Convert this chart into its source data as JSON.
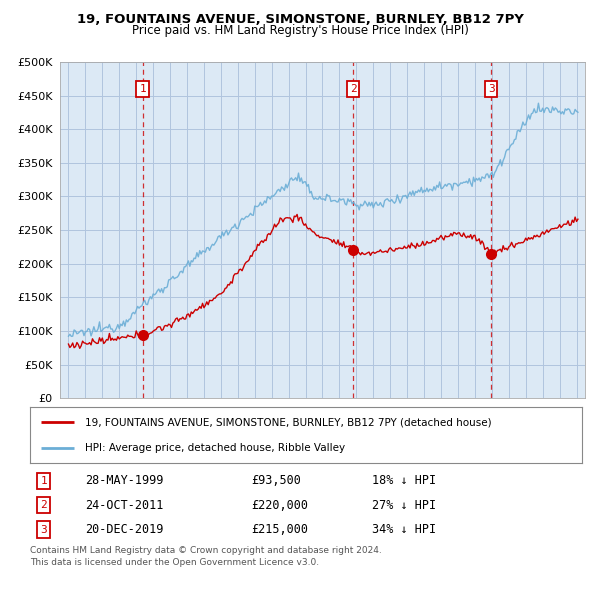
{
  "title": "19, FOUNTAINS AVENUE, SIMONSTONE, BURNLEY, BB12 7PY",
  "subtitle": "Price paid vs. HM Land Registry's House Price Index (HPI)",
  "ylim": [
    0,
    500000
  ],
  "ytick_values": [
    0,
    50000,
    100000,
    150000,
    200000,
    250000,
    300000,
    350000,
    400000,
    450000,
    500000
  ],
  "sale_dates_num": [
    1999.38,
    2011.81,
    2019.97
  ],
  "sale_prices": [
    93500,
    220000,
    215000
  ],
  "sale_labels": [
    "1",
    "2",
    "3"
  ],
  "sale_info": [
    {
      "label": "1",
      "date": "28-MAY-1999",
      "price": "£93,500",
      "pct": "18% ↓ HPI"
    },
    {
      "label": "2",
      "date": "24-OCT-2011",
      "price": "£220,000",
      "pct": "27% ↓ HPI"
    },
    {
      "label": "3",
      "date": "20-DEC-2019",
      "price": "£215,000",
      "pct": "34% ↓ HPI"
    }
  ],
  "hpi_color": "#6baed6",
  "sale_color": "#cc0000",
  "dashed_color": "#cc0000",
  "legend_line1": "19, FOUNTAINS AVENUE, SIMONSTONE, BURNLEY, BB12 7PY (detached house)",
  "legend_line2": "HPI: Average price, detached house, Ribble Valley",
  "footer1": "Contains HM Land Registry data © Crown copyright and database right 2024.",
  "footer2": "This data is licensed under the Open Government Licence v3.0.",
  "bg_color": "#dce9f5",
  "plot_bg": "#dce9f5",
  "grid_color": "#b0c4de",
  "xlim_start": 1994.5,
  "xlim_end": 2025.5
}
